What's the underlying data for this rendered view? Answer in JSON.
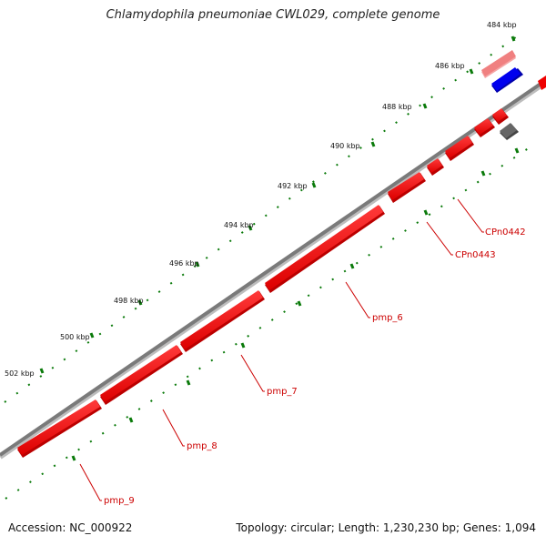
{
  "title": "Chlamydophila pneumoniae CWL029, complete genome",
  "footer": {
    "accession": "Accession: NC_000922",
    "stats": "Topology: circular; Length: 1,230,230 bp; Genes: 1,094"
  },
  "colors": {
    "backbone": "#7a7a7a",
    "gene_forward": "#ee0000",
    "gene_light": "#f08080",
    "gene_blue": "#0000ee",
    "gene_grey": "#666666",
    "tick": "#0a7a0a",
    "label": "#cc0000"
  },
  "tick_labels": [
    "484 kbp",
    "486 kbp",
    "488 kbp",
    "490 kbp",
    "492 kbp",
    "494 kbp",
    "496 kbp",
    "498 kbp",
    "500 kbp",
    "502 kbp"
  ],
  "gene_labels": [
    "CPn0442",
    "CPn0443",
    "pmp_6",
    "pmp_7",
    "pmp_8",
    "pmp_9"
  ]
}
